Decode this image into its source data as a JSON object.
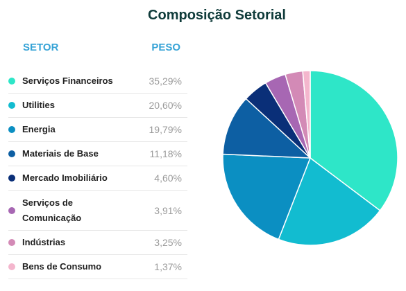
{
  "title": "Composição Setorial",
  "headers": {
    "sector": "SETOR",
    "weight": "PESO"
  },
  "rows": [
    {
      "name": "Serviços Financeiros",
      "weight": "35,29%",
      "color": "#2ee6c8"
    },
    {
      "name": "Utilities",
      "weight": "20,60%",
      "color": "#12bcd0"
    },
    {
      "name": "Energia",
      "weight": "19,79%",
      "color": "#0b8fc2"
    },
    {
      "name": "Materiais de Base",
      "weight": "11,18%",
      "color": "#0d5fa3"
    },
    {
      "name": "Mercado Imobiliário",
      "weight": "4,60%",
      "color": "#0a2f78"
    },
    {
      "name": "Serviços de Comunicação",
      "weight": "3,91%",
      "color": "#a767b3"
    },
    {
      "name": "Indústrias",
      "weight": "3,25%",
      "color": "#d38ab6"
    },
    {
      "name": "Bens de Consumo",
      "weight": "1,37%",
      "color": "#f4b6cd"
    }
  ],
  "chart_data": {
    "type": "pie",
    "title": "Composição Setorial",
    "categories": [
      "Serviços Financeiros",
      "Utilities",
      "Energia",
      "Materiais de Base",
      "Mercado Imobiliário",
      "Serviços de Comunicação",
      "Indústrias",
      "Bens de Consumo"
    ],
    "values": [
      35.29,
      20.6,
      19.79,
      11.18,
      4.6,
      3.91,
      3.25,
      1.37
    ],
    "colors": [
      "#2ee6c8",
      "#12bcd0",
      "#0b8fc2",
      "#0d5fa3",
      "#0a2f78",
      "#a767b3",
      "#d38ab6",
      "#f4b6cd"
    ],
    "start": "top",
    "direction": "clockwise"
  }
}
